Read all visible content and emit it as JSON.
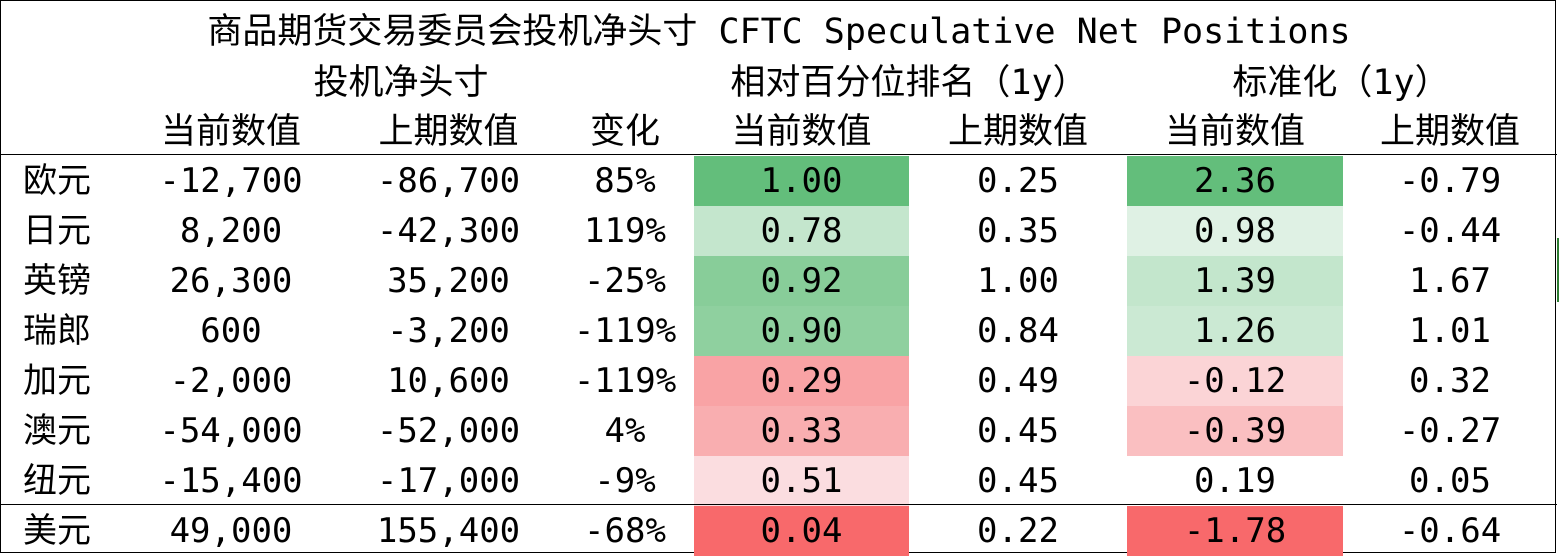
{
  "title": "商品期货交易委员会投机净头寸 CFTC Speculative Net Positions",
  "groups": {
    "net_positions": "投机净头寸",
    "percentile_rank": "相对百分位排名（1y）",
    "standardized": "标准化（1y）"
  },
  "headers": {
    "current": "当前数值",
    "previous": "上期数值",
    "change": "变化",
    "rank_current": "当前数值",
    "rank_previous": "上期数值",
    "std_current": "当前数值",
    "std_previous": "上期数值"
  },
  "rows": [
    {
      "currency": "欧元",
      "current": "-12,700",
      "previous": "-86,700",
      "change": "85%",
      "rank_current": "1.00",
      "rank_previous": "0.25",
      "std_current": "2.36",
      "std_previous": "-0.79",
      "rank_color": "#63be7b",
      "std_color": "#63be7b"
    },
    {
      "currency": "日元",
      "current": "8,200",
      "previous": "-42,300",
      "change": "119%",
      "rank_current": "0.78",
      "rank_previous": "0.35",
      "std_current": "0.98",
      "std_previous": "-0.44",
      "rank_color": "#c4e6cd",
      "std_color": "#dff1e4"
    },
    {
      "currency": "英镑",
      "current": "26,300",
      "previous": "35,200",
      "change": "-25%",
      "rank_current": "0.92",
      "rank_previous": "1.00",
      "std_current": "1.39",
      "std_previous": "1.67",
      "rank_color": "#88cd99",
      "std_color": "#c3e6cc"
    },
    {
      "currency": "瑞郎",
      "current": "600",
      "previous": "-3,200",
      "change": "-119%",
      "rank_current": "0.90",
      "rank_previous": "0.84",
      "std_current": "1.26",
      "std_previous": "1.01",
      "rank_color": "#8fd09f",
      "std_color": "#cbe9d3"
    },
    {
      "currency": "加元",
      "current": "-2,000",
      "previous": "10,600",
      "change": "-119%",
      "rank_current": "0.29",
      "rank_previous": "0.49",
      "std_current": "-0.12",
      "std_previous": "0.32",
      "rank_color": "#f9a3a5",
      "std_color": "#fbd4d6"
    },
    {
      "currency": "澳元",
      "current": "-54,000",
      "previous": "-52,000",
      "change": "4%",
      "rank_current": "0.33",
      "rank_previous": "0.45",
      "std_current": "-0.39",
      "std_previous": "-0.27",
      "rank_color": "#f9aeb0",
      "std_color": "#fabfc1"
    },
    {
      "currency": "纽元",
      "current": "-15,400",
      "previous": "-17,000",
      "change": "-9%",
      "rank_current": "0.51",
      "rank_previous": "0.45",
      "std_current": "0.19",
      "std_previous": "0.05",
      "rank_color": "#fbdde0",
      "std_color": "#ffffff"
    },
    {
      "currency": "美元",
      "current": "49,000",
      "previous": "155,400",
      "change": "-68%",
      "rank_current": "0.04",
      "rank_previous": "0.22",
      "std_current": "-1.78",
      "std_previous": "-0.64",
      "rank_color": "#f8696b",
      "std_color": "#f8696b"
    }
  ]
}
